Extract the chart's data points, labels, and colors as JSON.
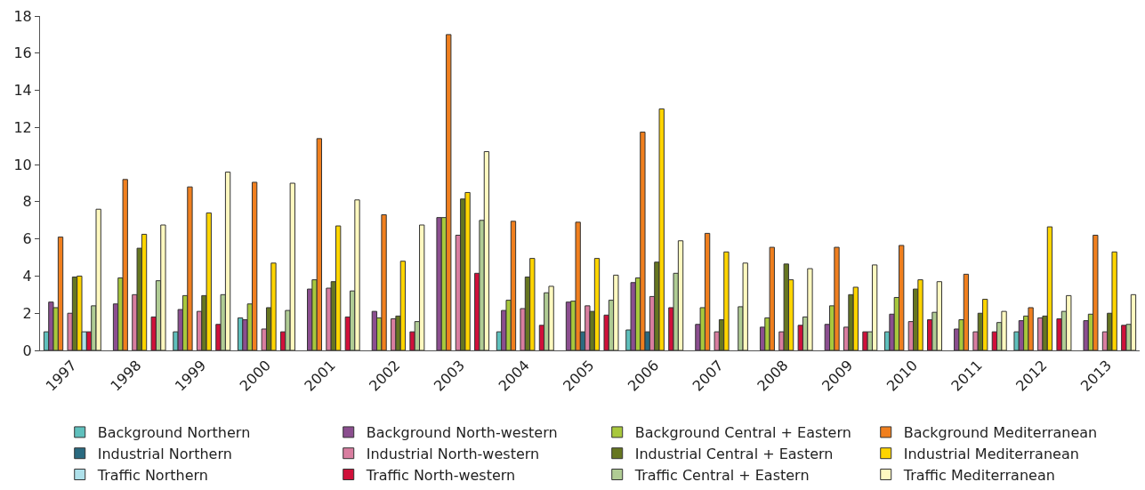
{
  "chart_data": {
    "type": "bar",
    "categories": [
      "1997",
      "1998",
      "1999",
      "2000",
      "2001",
      "2002",
      "2003",
      "2004",
      "2005",
      "2006",
      "2007",
      "2008",
      "2009",
      "2010",
      "2011",
      "2012",
      "2013"
    ],
    "series": [
      {
        "name": "Background Northern",
        "color": "#5fc0bd",
        "values": [
          1.0,
          null,
          1.0,
          1.75,
          null,
          null,
          null,
          1.0,
          null,
          1.1,
          null,
          null,
          null,
          1.0,
          null,
          1.0,
          null
        ]
      },
      {
        "name": "Background North-western",
        "color": "#8b4e8f",
        "values": [
          2.6,
          2.5,
          2.2,
          1.65,
          3.3,
          2.1,
          7.15,
          2.15,
          2.6,
          3.65,
          1.4,
          1.25,
          1.4,
          1.95,
          1.15,
          1.6,
          1.6
        ]
      },
      {
        "name": "Background Central + Eastern",
        "color": "#a8c83c",
        "values": [
          2.3,
          3.9,
          2.95,
          2.5,
          3.8,
          1.75,
          7.15,
          2.7,
          2.65,
          3.9,
          2.3,
          1.75,
          2.4,
          2.85,
          1.65,
          1.85,
          1.95
        ]
      },
      {
        "name": "Background Mediterranean",
        "color": "#f07f1e",
        "values": [
          6.1,
          9.2,
          8.8,
          9.05,
          11.4,
          7.3,
          17.0,
          6.95,
          6.9,
          11.75,
          6.3,
          5.55,
          5.55,
          5.65,
          4.1,
          2.3,
          6.2
        ]
      },
      {
        "name": "Industrial Northern",
        "color": "#2a6a80",
        "values": [
          null,
          null,
          null,
          null,
          null,
          null,
          null,
          null,
          1.0,
          1.0,
          null,
          null,
          null,
          null,
          null,
          null,
          null
        ]
      },
      {
        "name": "Industrial North-western",
        "color": "#d97ea0",
        "values": [
          2.0,
          3.0,
          2.1,
          1.15,
          3.35,
          1.7,
          6.2,
          2.25,
          2.4,
          2.9,
          1.0,
          1.0,
          1.25,
          1.55,
          1.0,
          1.75,
          1.0
        ]
      },
      {
        "name": "Industrial Central + Eastern",
        "color": "#667620",
        "values": [
          3.95,
          5.5,
          2.95,
          2.3,
          3.7,
          1.85,
          8.15,
          3.95,
          2.1,
          4.75,
          1.65,
          4.65,
          3.0,
          3.3,
          2.0,
          1.85,
          2.0
        ]
      },
      {
        "name": "Industrial Mediterranean",
        "color": "#ffd500",
        "values": [
          4.0,
          6.25,
          7.4,
          4.7,
          6.7,
          4.8,
          8.5,
          4.95,
          4.95,
          13.0,
          5.3,
          3.8,
          3.4,
          3.8,
          2.75,
          6.65,
          5.3
        ]
      },
      {
        "name": "Traffic Northern",
        "color": "#aee0ea",
        "values": [
          1.0,
          null,
          null,
          null,
          null,
          null,
          null,
          null,
          null,
          null,
          null,
          null,
          null,
          null,
          null,
          null,
          null
        ]
      },
      {
        "name": "Traffic North-western",
        "color": "#d0103a",
        "values": [
          1.0,
          1.8,
          1.4,
          1.0,
          1.8,
          1.0,
          4.15,
          1.35,
          1.9,
          2.3,
          null,
          1.35,
          1.0,
          1.65,
          1.0,
          1.7,
          1.35
        ]
      },
      {
        "name": "Traffic Central + Eastern",
        "color": "#b0cc94",
        "values": [
          2.4,
          3.75,
          3.0,
          2.15,
          3.2,
          1.55,
          7.0,
          3.1,
          2.7,
          4.15,
          2.35,
          1.8,
          1.0,
          2.05,
          1.5,
          2.1,
          1.4
        ]
      },
      {
        "name": "Traffic Mediterranean",
        "color": "#fff9c0",
        "values": [
          7.6,
          6.75,
          9.6,
          9.0,
          8.1,
          6.75,
          10.7,
          3.45,
          4.05,
          5.9,
          4.7,
          4.4,
          4.6,
          3.7,
          2.1,
          2.95,
          3.0
        ]
      }
    ],
    "ylim": [
      0,
      18
    ],
    "yticks": [
      0,
      2,
      4,
      6,
      8,
      10,
      12,
      14,
      16,
      18
    ],
    "legend": "bottom"
  }
}
